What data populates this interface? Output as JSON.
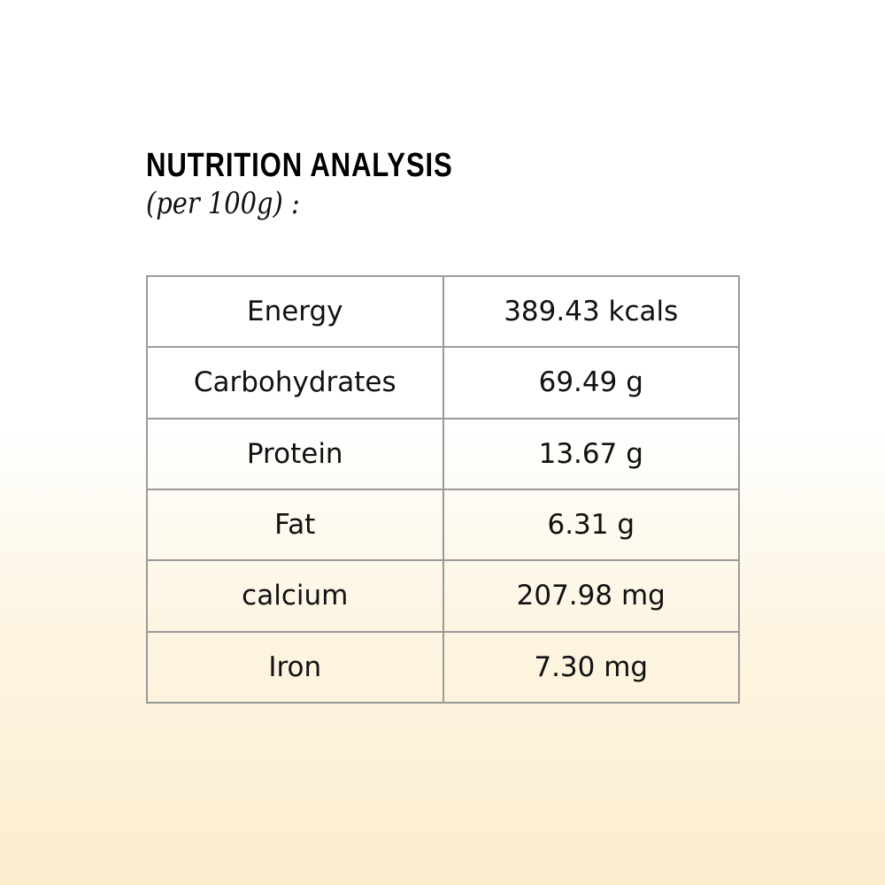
{
  "header": {
    "title": "NUTRITION ANALYSIS",
    "subtitle": "(per 100g) :"
  },
  "table": {
    "rows": [
      [
        "Energy",
        "389.43 kcals"
      ],
      [
        "Carbohydrates",
        "69.49 g"
      ],
      [
        "Protein",
        "13.67 g"
      ],
      [
        "Fat",
        "6.31 g"
      ],
      [
        "calcium",
        "207.98 mg"
      ],
      [
        "Iron",
        "7.30 mg"
      ]
    ]
  }
}
